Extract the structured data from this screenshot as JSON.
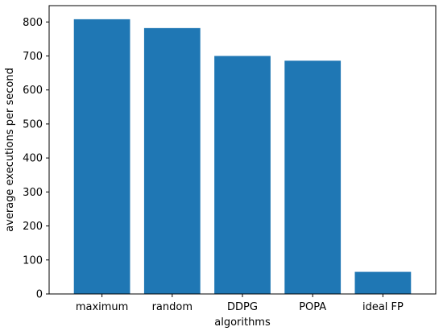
{
  "chart_data": {
    "type": "bar",
    "title": "",
    "xlabel": "algorithms",
    "ylabel": "average executions per second",
    "categories": [
      "maximum",
      "random",
      "DDPG",
      "POPA",
      "ideal FP"
    ],
    "values": [
      808,
      782,
      700,
      686,
      65
    ],
    "ylim": [
      0,
      848
    ],
    "yticks": [
      0,
      100,
      200,
      300,
      400,
      500,
      600,
      700,
      800
    ],
    "bar_color": "#1f77b4",
    "grid": false,
    "legend": "none"
  }
}
